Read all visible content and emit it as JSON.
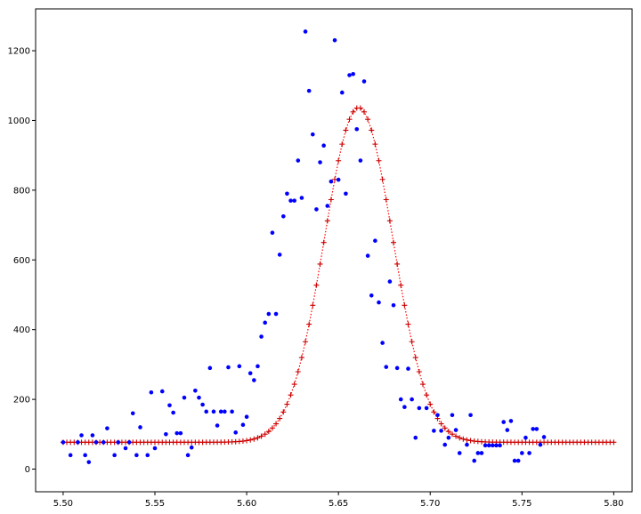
{
  "chart_data": {
    "type": "scatter",
    "title": "",
    "xlabel": "",
    "ylabel": "",
    "xlim": [
      5.485,
      5.81
    ],
    "ylim": [
      -65,
      1320
    ],
    "grid": false,
    "xticks": [
      5.5,
      5.55,
      5.6,
      5.65,
      5.7,
      5.75,
      5.8
    ],
    "xtick_labels": [
      "5.50",
      "5.55",
      "5.60",
      "5.65",
      "5.70",
      "5.75",
      "5.80"
    ],
    "yticks": [
      0,
      200,
      400,
      600,
      800,
      1000,
      1200
    ],
    "ytick_labels": [
      "0",
      "200",
      "400",
      "600",
      "800",
      "1000",
      "1200"
    ],
    "series": [
      {
        "style": "points",
        "marker": "dot",
        "color": "#0000ff",
        "points": [
          [
            5.5,
            77
          ],
          [
            5.504,
            40
          ],
          [
            5.508,
            77
          ],
          [
            5.51,
            97
          ],
          [
            5.512,
            40
          ],
          [
            5.514,
            20
          ],
          [
            5.516,
            97
          ],
          [
            5.518,
            77
          ],
          [
            5.522,
            77
          ],
          [
            5.524,
            117
          ],
          [
            5.528,
            40
          ],
          [
            5.53,
            77
          ],
          [
            5.534,
            60
          ],
          [
            5.536,
            77
          ],
          [
            5.538,
            160
          ],
          [
            5.54,
            40
          ],
          [
            5.542,
            120
          ],
          [
            5.546,
            40
          ],
          [
            5.548,
            220
          ],
          [
            5.55,
            60
          ],
          [
            5.554,
            223
          ],
          [
            5.556,
            100
          ],
          [
            5.558,
            183
          ],
          [
            5.56,
            162
          ],
          [
            5.562,
            103
          ],
          [
            5.564,
            103
          ],
          [
            5.566,
            205
          ],
          [
            5.568,
            40
          ],
          [
            5.57,
            62
          ],
          [
            5.572,
            225
          ],
          [
            5.574,
            205
          ],
          [
            5.576,
            185
          ],
          [
            5.578,
            165
          ],
          [
            5.58,
            290
          ],
          [
            5.582,
            165
          ],
          [
            5.584,
            125
          ],
          [
            5.586,
            165
          ],
          [
            5.588,
            165
          ],
          [
            5.59,
            292
          ],
          [
            5.592,
            165
          ],
          [
            5.594,
            105
          ],
          [
            5.596,
            295
          ],
          [
            5.598,
            127
          ],
          [
            5.6,
            150
          ],
          [
            5.602,
            275
          ],
          [
            5.604,
            255
          ],
          [
            5.606,
            295
          ],
          [
            5.608,
            380
          ],
          [
            5.61,
            420
          ],
          [
            5.612,
            445
          ],
          [
            5.614,
            678
          ],
          [
            5.616,
            445
          ],
          [
            5.618,
            615
          ],
          [
            5.62,
            725
          ],
          [
            5.622,
            790
          ],
          [
            5.624,
            770
          ],
          [
            5.626,
            770
          ],
          [
            5.628,
            885
          ],
          [
            5.63,
            778
          ],
          [
            5.632,
            1255
          ],
          [
            5.634,
            1085
          ],
          [
            5.636,
            960
          ],
          [
            5.638,
            745
          ],
          [
            5.64,
            880
          ],
          [
            5.642,
            928
          ],
          [
            5.644,
            755
          ],
          [
            5.646,
            825
          ],
          [
            5.648,
            1230
          ],
          [
            5.65,
            830
          ],
          [
            5.652,
            1080
          ],
          [
            5.654,
            790
          ],
          [
            5.656,
            1130
          ],
          [
            5.658,
            1133
          ],
          [
            5.66,
            975
          ],
          [
            5.662,
            885
          ],
          [
            5.664,
            1112
          ],
          [
            5.666,
            612
          ],
          [
            5.668,
            498
          ],
          [
            5.67,
            655
          ],
          [
            5.672,
            478
          ],
          [
            5.674,
            362
          ],
          [
            5.676,
            293
          ],
          [
            5.678,
            538
          ],
          [
            5.68,
            470
          ],
          [
            5.682,
            290
          ],
          [
            5.684,
            200
          ],
          [
            5.686,
            178
          ],
          [
            5.688,
            288
          ],
          [
            5.69,
            200
          ],
          [
            5.692,
            90
          ],
          [
            5.694,
            175
          ],
          [
            5.698,
            175
          ],
          [
            5.702,
            110
          ],
          [
            5.704,
            155
          ],
          [
            5.706,
            110
          ],
          [
            5.708,
            70
          ],
          [
            5.71,
            90
          ],
          [
            5.712,
            155
          ],
          [
            5.714,
            112
          ],
          [
            5.716,
            46
          ],
          [
            5.72,
            70
          ],
          [
            5.722,
            155
          ],
          [
            5.724,
            24
          ],
          [
            5.726,
            46
          ],
          [
            5.728,
            46
          ],
          [
            5.73,
            68
          ],
          [
            5.732,
            68
          ],
          [
            5.734,
            68
          ],
          [
            5.736,
            68
          ],
          [
            5.738,
            68
          ],
          [
            5.74,
            135
          ],
          [
            5.742,
            112
          ],
          [
            5.744,
            138
          ],
          [
            5.746,
            24
          ],
          [
            5.748,
            24
          ],
          [
            5.75,
            46
          ],
          [
            5.752,
            90
          ],
          [
            5.754,
            46
          ],
          [
            5.756,
            115
          ],
          [
            5.758,
            115
          ],
          [
            5.76,
            70
          ],
          [
            5.762,
            92
          ]
        ]
      },
      {
        "style": "fit",
        "marker": "plus",
        "line": "dotted",
        "color": "#ff0000",
        "marker_color": "#cc0000",
        "baseline": 77,
        "amplitude": 960,
        "center": 5.661,
        "sigma": 0.0187,
        "x_start": 5.5,
        "x_end": 5.8,
        "x_step": 0.002
      }
    ]
  }
}
